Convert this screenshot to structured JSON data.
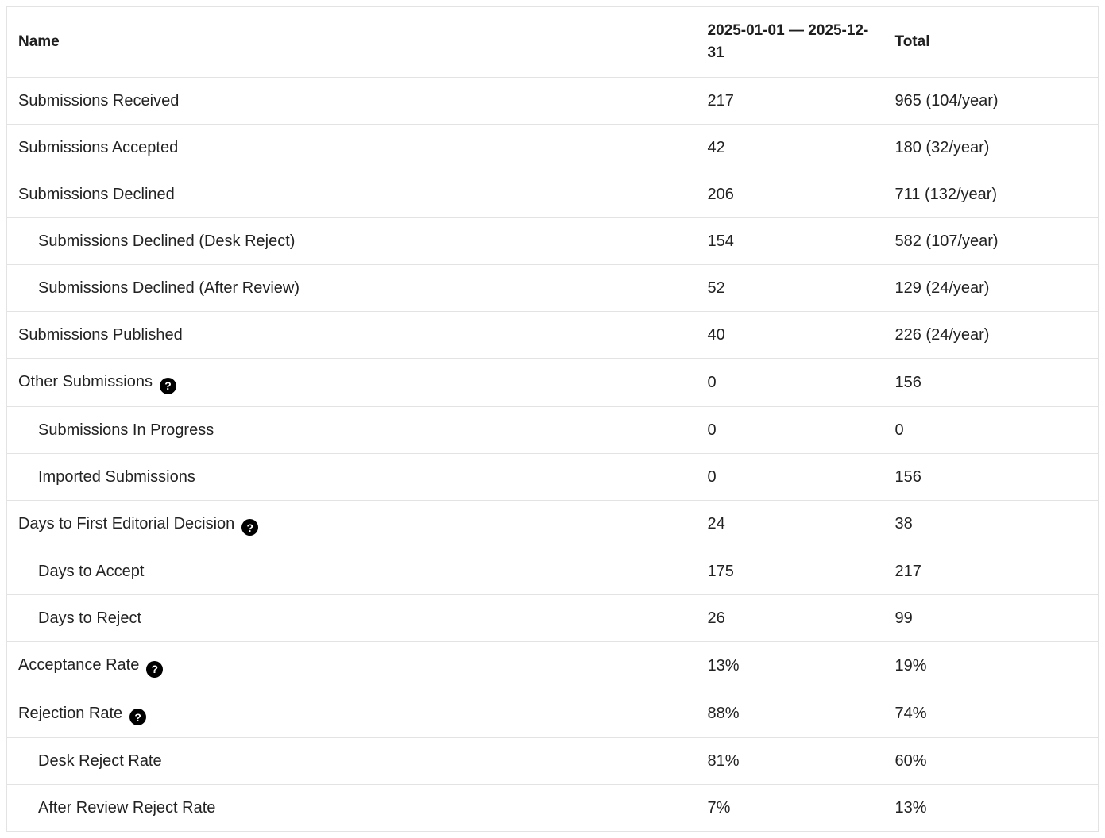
{
  "table": {
    "columns": [
      {
        "label": "Name"
      },
      {
        "label": "2025-01-01 — 2025-12-31"
      },
      {
        "label": "Total"
      }
    ],
    "help_icon": {
      "name": "question-circle-icon",
      "glyph": "?"
    },
    "colors": {
      "text": "#222222",
      "border": "#e3e3e3",
      "icon_bg": "#000000",
      "icon_fg": "#ffffff",
      "background": "#ffffff"
    },
    "rows": [
      {
        "name": "Submissions Received",
        "indent": false,
        "help": false,
        "period": "217",
        "total": "965 (104/year)"
      },
      {
        "name": "Submissions Accepted",
        "indent": false,
        "help": false,
        "period": "42",
        "total": "180 (32/year)"
      },
      {
        "name": "Submissions Declined",
        "indent": false,
        "help": false,
        "period": "206",
        "total": "711 (132/year)"
      },
      {
        "name": "Submissions Declined (Desk Reject)",
        "indent": true,
        "help": false,
        "period": "154",
        "total": "582 (107/year)"
      },
      {
        "name": "Submissions Declined (After Review)",
        "indent": true,
        "help": false,
        "period": "52",
        "total": "129 (24/year)"
      },
      {
        "name": "Submissions Published",
        "indent": false,
        "help": false,
        "period": "40",
        "total": "226 (24/year)"
      },
      {
        "name": "Other Submissions",
        "indent": false,
        "help": true,
        "period": "0",
        "total": "156"
      },
      {
        "name": "Submissions In Progress",
        "indent": true,
        "help": false,
        "period": "0",
        "total": "0"
      },
      {
        "name": "Imported Submissions",
        "indent": true,
        "help": false,
        "period": "0",
        "total": "156"
      },
      {
        "name": "Days to First Editorial Decision",
        "indent": false,
        "help": true,
        "period": "24",
        "total": "38"
      },
      {
        "name": "Days to Accept",
        "indent": true,
        "help": false,
        "period": "175",
        "total": "217"
      },
      {
        "name": "Days to Reject",
        "indent": true,
        "help": false,
        "period": "26",
        "total": "99"
      },
      {
        "name": "Acceptance Rate",
        "indent": false,
        "help": true,
        "period": "13%",
        "total": "19%"
      },
      {
        "name": "Rejection Rate",
        "indent": false,
        "help": true,
        "period": "88%",
        "total": "74%"
      },
      {
        "name": "Desk Reject Rate",
        "indent": true,
        "help": false,
        "period": "81%",
        "total": "60%"
      },
      {
        "name": "After Review Reject Rate",
        "indent": true,
        "help": false,
        "period": "7%",
        "total": "13%"
      }
    ]
  }
}
